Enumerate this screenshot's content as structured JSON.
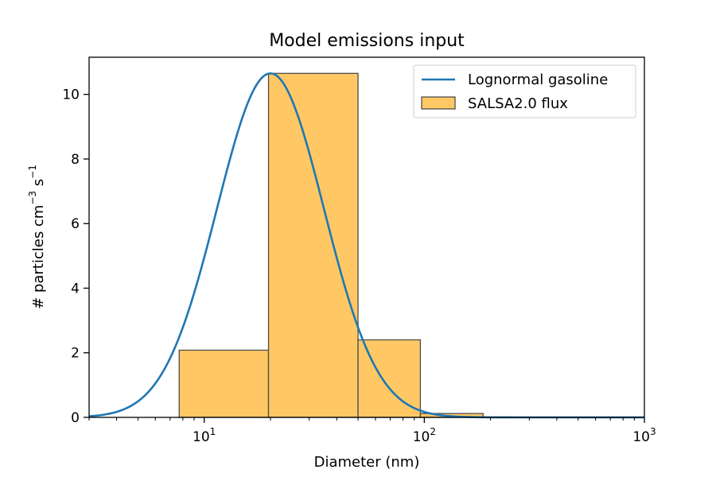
{
  "chart_data": {
    "type": "bar",
    "title": "Model emissions input",
    "xlabel": "Diameter (nm)",
    "ylabel_parts": {
      "prefix": "# particles cm",
      "exp1": "−3",
      "mid": " s",
      "exp2": "−1"
    },
    "x_scale": "log",
    "xlim": [
      3,
      1000
    ],
    "ylim": [
      0,
      11.15
    ],
    "x_ticks": [
      {
        "value": 10,
        "base": "10",
        "exp": "1"
      },
      {
        "value": 100,
        "base": "10",
        "exp": "2"
      },
      {
        "value": 1000,
        "base": "10",
        "exp": "3"
      }
    ],
    "y_ticks": [
      {
        "value": 0,
        "label": "0"
      },
      {
        "value": 2,
        "label": "2"
      },
      {
        "value": 4,
        "label": "4"
      },
      {
        "value": 6,
        "label": "6"
      },
      {
        "value": 8,
        "label": "8"
      },
      {
        "value": 10,
        "label": "10"
      }
    ],
    "grid": false,
    "legend_position": "top-right",
    "series": [
      {
        "name": "Lognormal gasoline",
        "kind": "line",
        "color": "#1f77b4",
        "peak": 10.65,
        "geometric_mean_diameter": 20,
        "geometric_std": 1.75
      },
      {
        "name": "SALSA2.0 flux",
        "kind": "histogram",
        "color": "#ffc864",
        "edge_color": "#4d4d4d",
        "bins": [
          {
            "x0": 3,
            "x1": 7.7,
            "value": 0
          },
          {
            "x0": 7.7,
            "x1": 19.6,
            "value": 2.08
          },
          {
            "x0": 19.6,
            "x1": 50,
            "value": 10.65
          },
          {
            "x0": 50,
            "x1": 96,
            "value": 2.4
          },
          {
            "x0": 96,
            "x1": 185,
            "value": 0.12
          },
          {
            "x0": 185,
            "x1": 1000,
            "value": 0
          }
        ]
      }
    ]
  }
}
